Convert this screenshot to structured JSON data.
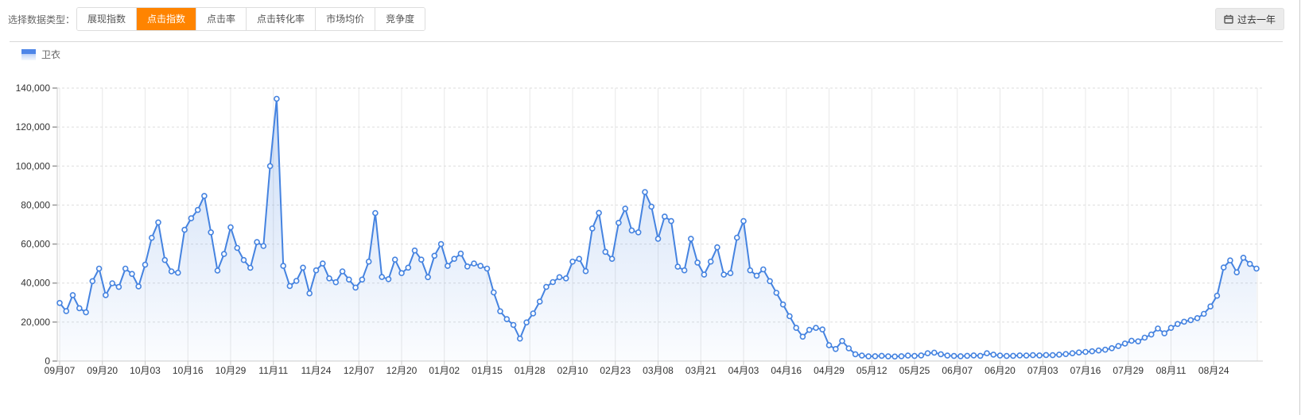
{
  "toolbar": {
    "label": "选择数据类型：",
    "tabs": [
      {
        "key": "display-index",
        "label": "展现指数",
        "active": false
      },
      {
        "key": "click-index",
        "label": "点击指数",
        "active": true
      },
      {
        "key": "ctr",
        "label": "点击率",
        "active": false
      },
      {
        "key": "click-conversion",
        "label": "点击转化率",
        "active": false
      },
      {
        "key": "market-avg-price",
        "label": "市场均价",
        "active": false
      },
      {
        "key": "competitiveness",
        "label": "竞争度",
        "active": false
      }
    ],
    "range_button": {
      "label": "过去一年",
      "icon": "calendar-icon"
    }
  },
  "legend": {
    "series_label": "卫衣"
  },
  "colors": {
    "accent_orange": "#ff8400",
    "line_blue": "#4583e0",
    "area_fill_top": "rgba(69,131,224,0.28)",
    "area_fill_bottom": "rgba(69,131,224,0.02)",
    "grid_vertical": "#e8e8e8",
    "grid_dashed": "#dddddd",
    "axis_line": "#cccccc",
    "tick_text": "#333333",
    "muted_text": "#666666"
  },
  "chart_data": {
    "type": "line",
    "title": "",
    "ylabel": "",
    "xlabel": "",
    "legend_position": "top-left",
    "grid": "horizontal-dashed, vertical-solid",
    "ylim": [
      0,
      140000
    ],
    "y_ticks": [
      0,
      20000,
      40000,
      60000,
      80000,
      100000,
      120000,
      140000
    ],
    "x_axis_labels": [
      "09月07",
      "09月20",
      "10月03",
      "10月16",
      "10月29",
      "11月11",
      "11月24",
      "12月07",
      "12月20",
      "01月02",
      "01月15",
      "01月28",
      "02月10",
      "02月23",
      "03月08",
      "03月21",
      "04月03",
      "04月16",
      "04月29",
      "05月12",
      "05月25",
      "06月07",
      "06月20",
      "07月03",
      "07月16",
      "07月29",
      "08月11",
      "08月24"
    ],
    "x_label_interval_days": 13,
    "sample_interval_days": 2,
    "peak_annotation": {
      "near_label": "11月11",
      "value": 134500
    },
    "series": [
      {
        "name": "卫衣",
        "values": [
          29800,
          25600,
          33800,
          27100,
          25000,
          41000,
          47400,
          33800,
          39900,
          38000,
          47400,
          44700,
          38300,
          49400,
          63200,
          71100,
          51800,
          46000,
          45300,
          67300,
          73200,
          77500,
          84700,
          66000,
          46400,
          54900,
          68600,
          58000,
          51800,
          47800,
          61000,
          59000,
          100000,
          134500,
          48800,
          38500,
          41100,
          47900,
          34700,
          46500,
          50000,
          42400,
          40400,
          46000,
          41800,
          37700,
          41800,
          51000,
          75900,
          43100,
          42000,
          52000,
          45100,
          47900,
          56700,
          52000,
          43000,
          54000,
          60000,
          48800,
          52400,
          55100,
          48500,
          50000,
          48800,
          47400,
          35200,
          25500,
          21500,
          18500,
          11500,
          19800,
          24400,
          30500,
          38000,
          40500,
          43000,
          42400,
          51000,
          52400,
          46100,
          68000,
          76000,
          56000,
          52400,
          70900,
          78200,
          67000,
          66000,
          86700,
          79200,
          62700,
          74100,
          71800,
          48400,
          46500,
          62700,
          50500,
          44300,
          51000,
          58300,
          44300,
          45100,
          63300,
          71800,
          46500,
          43800,
          47000,
          41000,
          35000,
          29000,
          23000,
          17000,
          12500,
          16000,
          17000,
          16200,
          8100,
          6200,
          10300,
          6500,
          3500,
          2800,
          2400,
          2500,
          2700,
          2400,
          2300,
          2500,
          2800,
          2600,
          2900,
          4000,
          4300,
          3500,
          2800,
          2600,
          2500,
          2700,
          2900,
          2700,
          4000,
          3300,
          2800,
          2600,
          2700,
          2900,
          2800,
          3000,
          2900,
          3100,
          3000,
          3300,
          3600,
          4000,
          4400,
          4700,
          5000,
          5400,
          5800,
          6600,
          7700,
          9000,
          10400,
          10100,
          12000,
          13600,
          16700,
          14200,
          17000,
          19000,
          20200,
          21000,
          22000,
          24200,
          28000,
          33500,
          48000,
          51600,
          45500,
          53000,
          49800,
          47400
        ]
      }
    ]
  }
}
